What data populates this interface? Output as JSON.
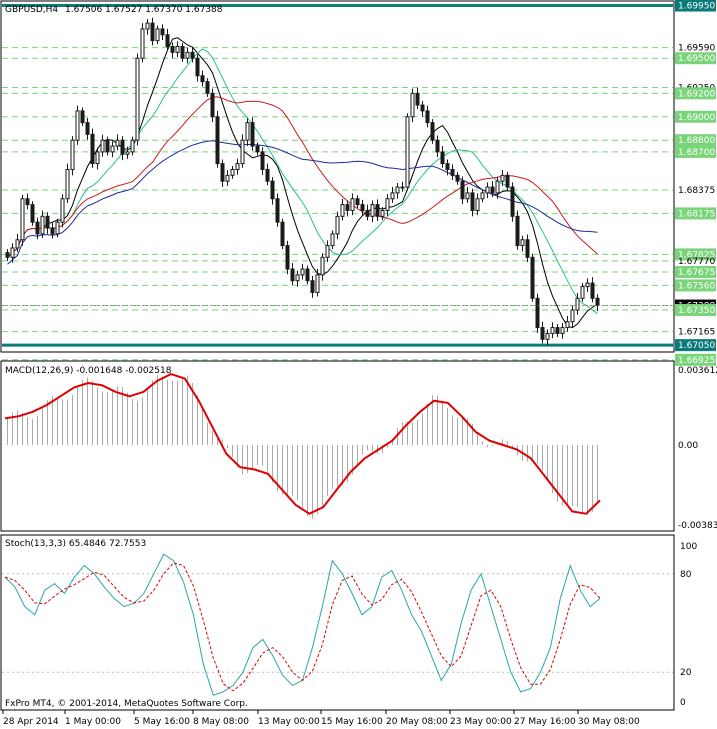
{
  "header": {
    "symbol": "GBPUSD,H4",
    "ohlc": "1.67506 1.67527 1.67370 1.67388"
  },
  "copyright": "FxPro MT4, © 2001-2014, MetaQuotes Software Corp.",
  "colors": {
    "bull": "#1a1a1a",
    "grid": "#7ad47a",
    "level_line": "#0a7a7a",
    "ma_fast": "#000000",
    "ma_mid": "#2bbf8f",
    "ma_slow": "#c81d1d",
    "ma_long": "#1d2a9e",
    "macd_hist": "#a8a8a8",
    "macd_signal": "#e00000",
    "stoch_main": "#2aa6a6",
    "stoch_signal": "#e00000"
  },
  "chart_data": [
    {
      "type": "candlestick",
      "title": "GBPUSD,H4",
      "ylim": [
        1.67,
        1.6998
      ],
      "x_tick_labels": [
        "28 Apr 2014",
        "1 May 00:00",
        "5 May 16:00",
        "8 May 08:00",
        "13 May 00:00",
        "15 May 16:00",
        "20 May 08:00",
        "23 May 00:00",
        "27 May 16:00",
        "30 May 08:00"
      ],
      "price_labels": [
        "1.69950",
        "1.69590",
        "1.69500",
        "1.69250",
        "1.69200",
        "1.69000",
        "1.68800",
        "1.68700",
        "1.68375",
        "1.68175",
        "1.67825",
        "1.67770",
        "1.67675",
        "1.67560",
        "1.67388",
        "1.67350",
        "1.67165",
        "1.67050",
        "1.66925"
      ],
      "current_price": 1.67388,
      "horizontal_levels": [
        1.6995,
        1.6705
      ],
      "close_approx": [
        1.678,
        1.6788,
        1.6795,
        1.683,
        1.6825,
        1.681,
        1.68,
        1.6815,
        1.6805,
        1.68,
        1.681,
        1.683,
        1.6855,
        1.688,
        1.6905,
        1.6895,
        1.6885,
        1.686,
        1.687,
        1.688,
        1.687,
        1.6875,
        1.688,
        1.6868,
        1.687,
        1.688,
        1.695,
        1.6975,
        1.698,
        1.6965,
        1.6975,
        1.697,
        1.696,
        1.6955,
        1.696,
        1.695,
        1.6955,
        1.695,
        1.6935,
        1.693,
        1.692,
        1.69,
        1.686,
        1.6845,
        1.685,
        1.6855,
        1.686,
        1.688,
        1.6895,
        1.6875,
        1.687,
        1.6855,
        1.6845,
        1.683,
        1.681,
        1.679,
        1.677,
        1.676,
        1.6765,
        1.677,
        1.676,
        1.675,
        1.6765,
        1.678,
        1.679,
        1.68,
        1.6815,
        1.6825,
        1.682,
        1.683,
        1.6825,
        1.682,
        1.6815,
        1.6825,
        1.6815,
        1.682,
        1.683,
        1.6835,
        1.684,
        1.684,
        1.69,
        1.692,
        1.691,
        1.6905,
        1.6895,
        1.688,
        1.687,
        1.686,
        1.6855,
        1.685,
        1.6845,
        1.683,
        1.6835,
        1.682,
        1.683,
        1.6835,
        1.684,
        1.6835,
        1.6845,
        1.685,
        1.684,
        1.6815,
        1.679,
        1.6795,
        1.678,
        1.6745,
        1.672,
        1.671,
        1.6715,
        1.672,
        1.6715,
        1.672,
        1.6725,
        1.6735,
        1.6745,
        1.6755,
        1.6758,
        1.6745,
        1.6739
      ]
    },
    {
      "type": "line",
      "title": "MACD(12,26,9) -0.001648 -0.002518",
      "ylim": [
        -0.003835,
        0.003612
      ],
      "tick_labels": [
        "0.003612",
        "0.00",
        "-0.003835"
      ],
      "signal_approx": [
        0.0012,
        0.0013,
        0.0015,
        0.0018,
        0.0022,
        0.0026,
        0.0028,
        0.0027,
        0.0024,
        0.0022,
        0.0024,
        0.0029,
        0.0032,
        0.003,
        0.002,
        0.0008,
        -0.0004,
        -0.001,
        -0.0011,
        -0.0013,
        -0.002,
        -0.0027,
        -0.0031,
        -0.0028,
        -0.002,
        -0.0012,
        -0.0006,
        -0.0002,
        0.0002,
        0.0009,
        0.0015,
        0.002,
        0.0019,
        0.0013,
        0.0006,
        0.0002,
        0.0,
        -0.0002,
        -0.0006,
        -0.0014,
        -0.0022,
        -0.003,
        -0.0031,
        -0.0025
      ]
    },
    {
      "type": "line",
      "title": "Stoch(13,3,3) 65.4846 72.7553",
      "ylim": [
        0,
        100
      ],
      "tick_labels": [
        "100",
        "80",
        "20",
        "0"
      ],
      "main_approx": [
        78,
        72,
        60,
        55,
        70,
        74,
        68,
        78,
        85,
        80,
        72,
        65,
        60,
        62,
        68,
        80,
        92,
        88,
        75,
        55,
        25,
        6,
        8,
        12,
        20,
        35,
        40,
        30,
        18,
        12,
        15,
        35,
        60,
        88,
        80,
        68,
        55,
        60,
        78,
        82,
        70,
        55,
        45,
        30,
        15,
        25,
        50,
        70,
        80,
        60,
        40,
        20,
        8,
        10,
        20,
        35,
        65,
        85,
        70,
        60,
        65
      ]
    }
  ]
}
